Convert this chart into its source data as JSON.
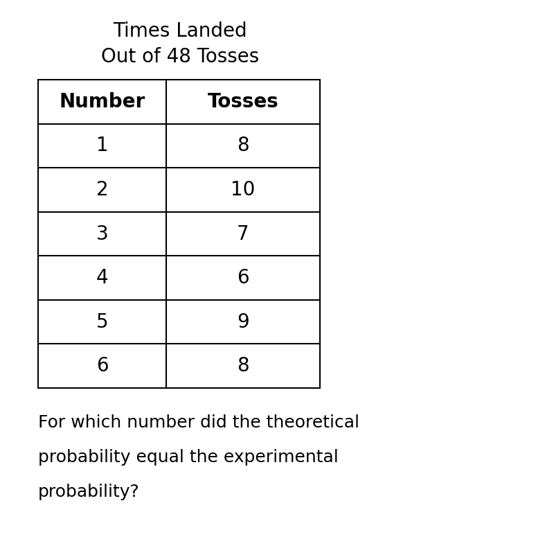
{
  "title_line1": "Times Landed",
  "title_line2": "Out of 48 Tosses",
  "col_headers": [
    "Number",
    "Tosses"
  ],
  "numbers": [
    1,
    2,
    3,
    4,
    5,
    6
  ],
  "tosses": [
    8,
    10,
    7,
    6,
    9,
    8
  ],
  "question_line1": "For which number did the theoretical",
  "question_line2": "probability equal the experimental",
  "question_line3": "probability?",
  "bg_color": "#ffffff",
  "text_color": "#000000",
  "table_line_color": "#000000",
  "title_fontsize": 20,
  "header_fontsize": 20,
  "cell_fontsize": 20,
  "question_fontsize": 18,
  "fig_width": 8.0,
  "fig_height": 8.01,
  "dpi": 100
}
